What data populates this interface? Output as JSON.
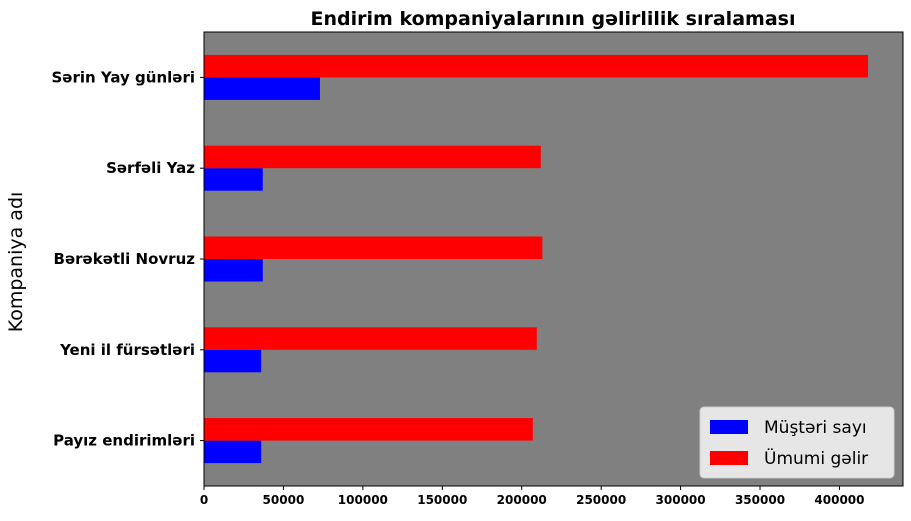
{
  "chart_data": {
    "type": "bar",
    "orientation": "horizontal",
    "title": "Endirim kompaniyalarının gəlirlilik sıralaması",
    "xlabel": "",
    "ylabel": "Kompaniya adı",
    "categories": [
      "Payız endirimləri",
      "Yeni il fürsətləri",
      "Bərəkətli Novruz",
      "Sərfəli Yaz",
      "Sərin Yay günləri"
    ],
    "series": [
      {
        "name": "Müştəri sayı",
        "color": "#0000ff",
        "values": [
          36000,
          36000,
          37000,
          37000,
          73000
        ]
      },
      {
        "name": "Ümumi gəlir",
        "color": "#ff0000",
        "values": [
          207000,
          209500,
          213000,
          212000,
          418000
        ]
      }
    ],
    "xlim": [
      0,
      440000
    ],
    "xticks": [
      0,
      50000,
      100000,
      150000,
      200000,
      250000,
      300000,
      350000,
      400000
    ],
    "xtick_labels": [
      "0",
      "50000",
      "100000",
      "150000",
      "200000",
      "250000",
      "300000",
      "350000",
      "400000"
    ],
    "plot_background": "#808080",
    "grid": false,
    "legend_position": "lower right"
  }
}
